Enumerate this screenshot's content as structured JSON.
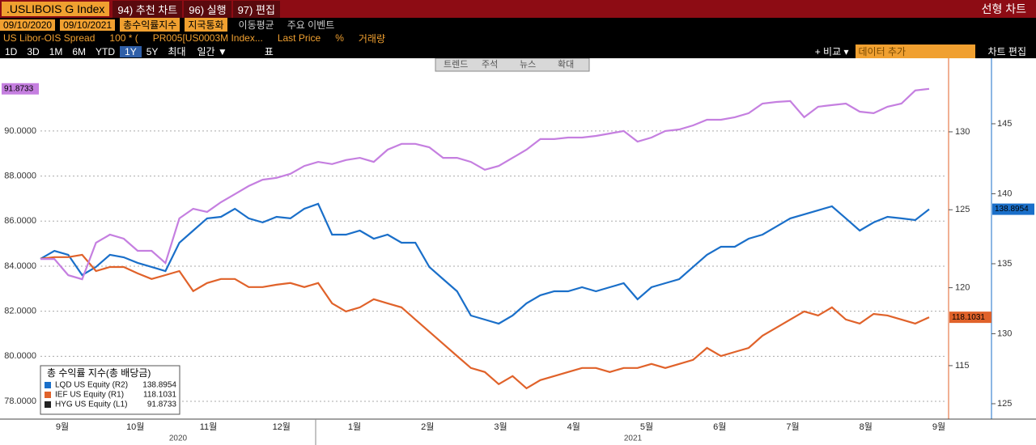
{
  "toolbar": {
    "ticker": ".USLIBOIS G Index",
    "menu": [
      "94) 추천 차트",
      "96) 실행",
      "97) 편집"
    ],
    "chart_type": "선형 차트",
    "start_date": "09/10/2020",
    "end_date": "09/10/2021",
    "mode": "총수익률지수",
    "currency": "지국통화",
    "options": [
      "이동평균",
      "주요 이벤트"
    ],
    "study": [
      "US Libor-OIS Spread",
      "100 * (",
      "PR005[US0003M Index...",
      "Last Price",
      "%",
      "거래량"
    ],
    "periods": [
      "1D",
      "3D",
      "1M",
      "6M",
      "YTD",
      "1Y",
      "5Y",
      "최대"
    ],
    "frequency": "일간 ▼",
    "table": "표",
    "compare": "+ 비교 ▾",
    "add_data": "데이터 추가",
    "edit": "차트 편집",
    "tools": [
      "트렌드",
      "주석",
      "뉴스",
      "확대"
    ]
  },
  "chart_data": {
    "type": "line",
    "legend_title": "총 수익률 지수(총 배당금)",
    "legend": "lower-left",
    "months": [
      "9월",
      "10월",
      "11월",
      "12월",
      "1월",
      "2월",
      "3월",
      "4월",
      "5월",
      "6월",
      "7월",
      "8월",
      "9월"
    ],
    "years": [
      "2020",
      "2021"
    ],
    "ylim": [
      77.21,
      93.23
    ],
    "yticks": [
      {
        "value": 78,
        "label": "78.0000"
      },
      {
        "value": 80,
        "label": "80.0000"
      },
      {
        "value": 82,
        "label": "82.0000"
      },
      {
        "value": 84,
        "label": "84.0000"
      },
      {
        "value": 86,
        "label": "86.0000"
      },
      {
        "value": 88,
        "label": "88.0000"
      },
      {
        "value": 90,
        "label": "90.0000"
      }
    ],
    "y2lim": [
      111.57,
      134.72
    ],
    "y2ticks": [
      115,
      120,
      125,
      130
    ],
    "y3lim": [
      123.9,
      149.68
    ],
    "y3ticks": [
      125,
      130,
      135,
      140,
      145
    ],
    "grid": true,
    "series": [
      {
        "name": "LQD US Equity  (R2)",
        "color": "#1a6fc9",
        "axis": "y3",
        "values": [
          135.35,
          135.92,
          135.64,
          134.19,
          134.77,
          135.64,
          135.46,
          135.06,
          134.77,
          134.48,
          136.5,
          137.37,
          138.24,
          138.35,
          138.93,
          138.24,
          137.95,
          138.35,
          138.24,
          138.93,
          139.28,
          137.08,
          137.08,
          137.37,
          136.79,
          137.08,
          136.5,
          136.5,
          134.77,
          133.9,
          133.03,
          131.3,
          131.01,
          130.72,
          131.3,
          132.17,
          132.75,
          133.03,
          133.03,
          133.32,
          133.03,
          133.32,
          133.61,
          132.46,
          133.32,
          133.61,
          133.9,
          134.77,
          135.64,
          136.21,
          136.21,
          136.79,
          137.08,
          137.66,
          138.24,
          138.53,
          138.82,
          139.1,
          138.24,
          137.37,
          137.95,
          138.35,
          138.24,
          138.12,
          138.8954
        ]
      },
      {
        "name": "IEF US Equity  (R1)",
        "color": "#e0622a",
        "axis": "y2",
        "values": [
          121.85,
          121.96,
          121.96,
          122.11,
          121.07,
          121.33,
          121.33,
          120.92,
          120.56,
          120.81,
          121.07,
          119.78,
          120.3,
          120.56,
          120.56,
          120.04,
          120.04,
          120.19,
          120.3,
          120.04,
          120.3,
          119.0,
          118.48,
          118.74,
          119.26,
          119.0,
          118.74,
          117.96,
          117.18,
          116.4,
          115.62,
          114.85,
          114.59,
          113.81,
          114.33,
          113.55,
          114.07,
          114.33,
          114.59,
          114.85,
          114.85,
          114.59,
          114.85,
          114.85,
          115.11,
          114.85,
          115.11,
          115.37,
          116.14,
          115.62,
          115.88,
          116.14,
          116.92,
          117.44,
          117.96,
          118.48,
          118.22,
          118.74,
          117.96,
          117.7,
          118.32,
          118.22,
          117.96,
          117.7,
          118.1031
        ]
      },
      {
        "name": "HYG US Equity  (L1)",
        "color": "#c57fe0",
        "axis": "y",
        "values": [
          84.32,
          84.32,
          83.6,
          83.42,
          85.04,
          85.4,
          85.22,
          84.68,
          84.68,
          84.14,
          86.12,
          86.55,
          86.41,
          86.84,
          87.2,
          87.56,
          87.84,
          87.92,
          88.1,
          88.45,
          88.63,
          88.53,
          88.71,
          88.81,
          88.63,
          89.17,
          89.43,
          89.43,
          89.28,
          88.81,
          88.81,
          88.63,
          88.28,
          88.45,
          88.81,
          89.17,
          89.64,
          89.64,
          89.71,
          89.71,
          89.78,
          89.89,
          90.0,
          89.53,
          89.71,
          90.0,
          90.07,
          90.25,
          90.5,
          90.5,
          90.61,
          90.79,
          91.22,
          91.29,
          91.33,
          90.61,
          91.08,
          91.15,
          91.22,
          90.86,
          90.79,
          91.08,
          91.22,
          91.8,
          91.8733
        ]
      }
    ]
  }
}
